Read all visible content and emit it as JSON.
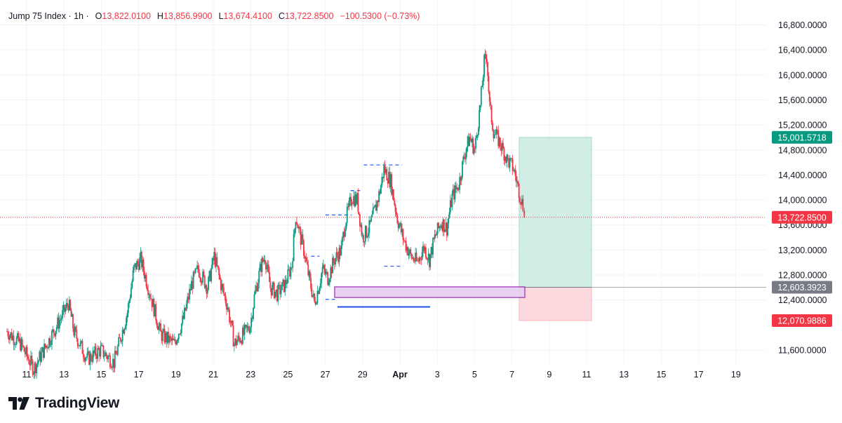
{
  "legend": {
    "symbol": "Jump 75 Index · 1h ·",
    "open_label": "O",
    "open": "13,822.0100",
    "high_label": "H",
    "high": "13,856.9900",
    "low_label": "L",
    "low": "13,674.4100",
    "close_label": "C",
    "close": "13,722.8500",
    "change": "−100.5300 (−0.73%)"
  },
  "brand": {
    "name": "TradingView",
    "icon": "tradingview-logo-icon"
  },
  "colors": {
    "up": "#089981",
    "down": "#f23645",
    "grid": "#f0f3fa",
    "target_zone": "#d1ede6",
    "stop_zone": "#fbd9dc",
    "target_badge": "#089981",
    "entry_badge": "#787b86",
    "stop_badge": "#f23645",
    "price_badge": "#f23645",
    "dashed": "#2962ff",
    "rect": "#e6cdf0",
    "rect_border": "#9c27b0"
  },
  "chart_data": {
    "type": "candlestick",
    "timeframe": "1h",
    "x_tick_labels": [
      "11",
      "13",
      "15",
      "17",
      "19",
      "21",
      "23",
      "25",
      "27",
      "29",
      "Apr",
      "3",
      "5",
      "7",
      "9",
      "11",
      "13",
      "15",
      "17",
      "19"
    ],
    "y_tick_labels": [
      "16,800.0000",
      "16,400.0000",
      "16,000.0000",
      "15,600.0000",
      "15,200.0000",
      "14,800.0000",
      "14,400.0000",
      "14,000.0000",
      "13,600.0000",
      "13,200.0000",
      "12,800.0000",
      "12,400.0000",
      "11,600.0000"
    ],
    "ylim": [
      11400,
      17200
    ],
    "last_price": 13722.85,
    "last_price_label": "13,722.8500",
    "position": {
      "type": "long",
      "target": 15001.5718,
      "target_label": "15,001.5718",
      "entry": 12603.3923,
      "entry_label": "12,603.3923",
      "stop": 12070.9886,
      "stop_label": "12,070.9886"
    },
    "price_path": [
      [
        0,
        11900
      ],
      [
        1,
        11700
      ],
      [
        2,
        11300
      ],
      [
        3,
        11700
      ],
      [
        4,
        12100
      ],
      [
        4.6,
        12350
      ],
      [
        5,
        11900
      ],
      [
        6,
        11450
      ],
      [
        7,
        11600
      ],
      [
        8,
        11400
      ],
      [
        9,
        12200
      ],
      [
        9.5,
        12900
      ],
      [
        10,
        13050
      ],
      [
        10.7,
        12500
      ],
      [
        11.5,
        11850
      ],
      [
        12.5,
        11700
      ],
      [
        13.2,
        12100
      ],
      [
        13.8,
        12650
      ],
      [
        14.3,
        12900
      ],
      [
        15,
        12600
      ],
      [
        15.5,
        13100
      ],
      [
        16,
        12650
      ],
      [
        16.5,
        12300
      ],
      [
        17,
        11700
      ],
      [
        17.7,
        11850
      ],
      [
        18.2,
        12000
      ],
      [
        18.5,
        12450
      ],
      [
        19,
        12950
      ],
      [
        19.3,
        13100
      ],
      [
        19.7,
        12600
      ],
      [
        20.2,
        12500
      ],
      [
        20.8,
        12650
      ],
      [
        21.3,
        12950
      ],
      [
        21.6,
        13750
      ],
      [
        21.9,
        13450
      ],
      [
        22.2,
        13200
      ],
      [
        22.6,
        12750
      ],
      [
        23.0,
        12350
      ],
      [
        23.3,
        12600
      ],
      [
        23.6,
        12900
      ],
      [
        24.0,
        12750
      ],
      [
        24.5,
        13050
      ],
      [
        25.0,
        13200
      ],
      [
        25.3,
        13650
      ],
      [
        25.8,
        14050
      ],
      [
        26.2,
        14000
      ],
      [
        26.6,
        13400
      ],
      [
        27.1,
        13550
      ],
      [
        27.6,
        13900
      ],
      [
        27.9,
        14150
      ],
      [
        28.2,
        14500
      ],
      [
        28.7,
        14300
      ],
      [
        29.2,
        13700
      ],
      [
        29.7,
        13350
      ],
      [
        30.2,
        13100
      ],
      [
        30.7,
        13000
      ],
      [
        31.2,
        13250
      ],
      [
        31.6,
        13050
      ],
      [
        32.0,
        13400
      ],
      [
        32.5,
        13650
      ],
      [
        32.9,
        13550
      ],
      [
        33.3,
        14050
      ],
      [
        33.8,
        14250
      ],
      [
        34.2,
        14700
      ],
      [
        34.6,
        15000
      ],
      [
        35.0,
        14800
      ],
      [
        35.4,
        15500
      ],
      [
        35.7,
        16200
      ],
      [
        35.9,
        16300
      ],
      [
        36.1,
        15500
      ],
      [
        36.4,
        15100
      ],
      [
        36.9,
        14900
      ],
      [
        37.4,
        14650
      ],
      [
        37.9,
        14500
      ],
      [
        38.3,
        14150
      ],
      [
        38.6,
        13900
      ],
      [
        38.7,
        13722.85
      ]
    ],
    "drawings": {
      "dashed_levels": [
        {
          "price": 13100,
          "day_from": 25.3,
          "day_to": 26.0
        },
        {
          "price": 13760,
          "day_from": 26.5,
          "day_to": 28.7
        },
        {
          "price": 14150,
          "day_from": 28.6,
          "day_to": 29.4
        },
        {
          "price": 14560,
          "day_from": 29.7,
          "day_to": 32.9
        },
        {
          "price": 12410,
          "day_from": 26.5,
          "day_to": 27.3
        },
        {
          "price": 12940,
          "day_from": 31.4,
          "day_to": 33.0
        }
      ],
      "zone_rect": {
        "price_top": 12610,
        "price_bottom": 12440,
        "day_from": 27.3,
        "day_to": 38.6
      },
      "solid_line": {
        "price": 12290,
        "day_from": 27.5,
        "day_to": 33.2
      }
    }
  }
}
